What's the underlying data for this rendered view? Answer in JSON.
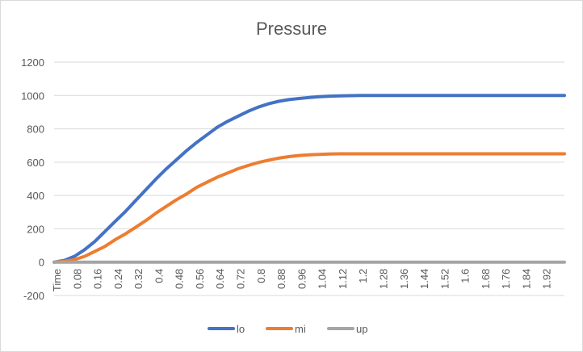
{
  "chart_data": {
    "type": "line",
    "title": "Pressure",
    "xlabel": "",
    "ylabel": "",
    "ylim": [
      -200,
      1200
    ],
    "y_ticks": [
      -200,
      0,
      200,
      400,
      600,
      800,
      1000,
      1200
    ],
    "grid": true,
    "legend_position": "bottom",
    "x_tick_labels": [
      "Time",
      "0.08",
      "0.16",
      "0.24",
      "0.32",
      "0.4",
      "0.48",
      "0.56",
      "0.64",
      "0.72",
      "0.8",
      "0.88",
      "0.96",
      "1.04",
      "1.12",
      "1.2",
      "1.28",
      "1.36",
      "1.44",
      "1.52",
      "1.6",
      "1.68",
      "1.76",
      "1.84",
      "1.92"
    ],
    "x": [
      0,
      0.04,
      0.08,
      0.12,
      0.16,
      0.2,
      0.24,
      0.28,
      0.32,
      0.36,
      0.4,
      0.44,
      0.48,
      0.52,
      0.56,
      0.6,
      0.64,
      0.68,
      0.72,
      0.76,
      0.8,
      0.84,
      0.88,
      0.92,
      0.96,
      1.0,
      1.04,
      1.08,
      1.12,
      1.2,
      1.28,
      1.36,
      1.44,
      1.52,
      1.6,
      1.68,
      1.76,
      1.84,
      1.92,
      2.0
    ],
    "series": [
      {
        "name": "lo",
        "color": "#4472c4",
        "values": [
          0,
          10,
          35,
          75,
          125,
          185,
          245,
          305,
          370,
          435,
          500,
          560,
          615,
          670,
          720,
          765,
          810,
          845,
          875,
          905,
          930,
          950,
          965,
          975,
          982,
          988,
          993,
          996,
          998,
          1000,
          1000,
          1000,
          1000,
          1000,
          1000,
          1000,
          1000,
          1000,
          1000,
          1000
        ]
      },
      {
        "name": "mi",
        "color": "#ed7d31",
        "values": [
          0,
          5,
          15,
          35,
          65,
          95,
          135,
          170,
          210,
          250,
          295,
          335,
          375,
          410,
          450,
          480,
          510,
          535,
          560,
          580,
          598,
          612,
          624,
          633,
          640,
          644,
          647,
          649,
          650,
          650,
          650,
          650,
          650,
          650,
          650,
          650,
          650,
          650,
          650,
          650
        ]
      },
      {
        "name": "up",
        "color": "#a5a5a5",
        "values": [
          0,
          0,
          0,
          0,
          0,
          0,
          0,
          0,
          0,
          0,
          0,
          0,
          0,
          0,
          0,
          0,
          0,
          0,
          0,
          0,
          0,
          0,
          0,
          0,
          0,
          0,
          0,
          0,
          0,
          0,
          0,
          0,
          0,
          0,
          0,
          0,
          0,
          0,
          0,
          0
        ]
      }
    ]
  }
}
